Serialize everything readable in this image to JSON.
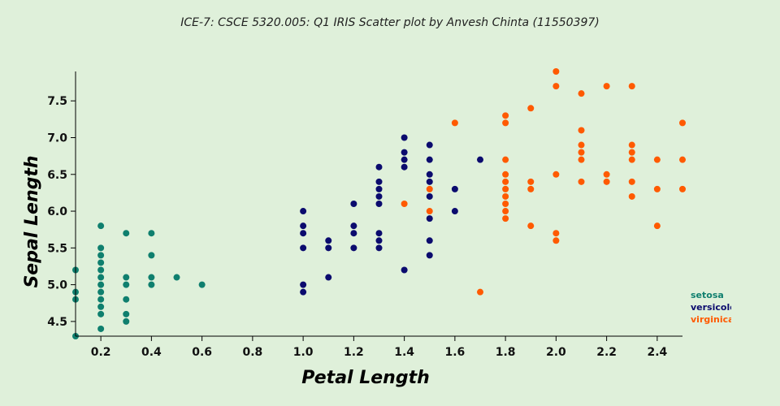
{
  "chart_data": {
    "type": "scatter",
    "title": "ICE-7: CSCE 5320.005: Q1 IRIS Scatter plot by Anvesh Chinta (11550397)",
    "xlabel": "Petal Length",
    "ylabel": "Sepal Length",
    "xlim": [
      0.1,
      2.5
    ],
    "ylim": [
      4.3,
      7.9
    ],
    "x_ticks": [
      "0.2",
      "0.4",
      "0.6",
      "0.8",
      "1.0",
      "1.2",
      "1.4",
      "1.6",
      "1.8",
      "2.0",
      "2.2",
      "2.4"
    ],
    "y_ticks": [
      "4.5",
      "5.0",
      "5.5",
      "6.0",
      "6.5",
      "7.0",
      "7.5"
    ],
    "grid": false,
    "legend_position": "right",
    "series": [
      {
        "name": "setosa",
        "color": "#0f7f6e",
        "points": [
          [
            0.1,
            5.2
          ],
          [
            0.1,
            4.9
          ],
          [
            0.1,
            4.8
          ],
          [
            0.1,
            4.3
          ],
          [
            0.2,
            5.8
          ],
          [
            0.2,
            5.5
          ],
          [
            0.2,
            5.4
          ],
          [
            0.2,
            5.3
          ],
          [
            0.2,
            5.2
          ],
          [
            0.2,
            5.1
          ],
          [
            0.2,
            5.0
          ],
          [
            0.2,
            4.9
          ],
          [
            0.2,
            4.8
          ],
          [
            0.2,
            4.7
          ],
          [
            0.2,
            4.6
          ],
          [
            0.2,
            4.4
          ],
          [
            0.3,
            5.7
          ],
          [
            0.3,
            5.1
          ],
          [
            0.3,
            5.0
          ],
          [
            0.3,
            4.8
          ],
          [
            0.3,
            4.6
          ],
          [
            0.3,
            4.5
          ],
          [
            0.4,
            5.7
          ],
          [
            0.4,
            5.4
          ],
          [
            0.4,
            5.1
          ],
          [
            0.4,
            5.0
          ],
          [
            0.5,
            5.1
          ],
          [
            0.6,
            5.0
          ]
        ]
      },
      {
        "name": "versicolor",
        "color": "#0b0b6e",
        "points": [
          [
            1.0,
            6.0
          ],
          [
            1.0,
            5.8
          ],
          [
            1.0,
            5.7
          ],
          [
            1.0,
            5.5
          ],
          [
            1.0,
            5.0
          ],
          [
            1.0,
            4.9
          ],
          [
            1.1,
            5.6
          ],
          [
            1.1,
            5.5
          ],
          [
            1.1,
            5.1
          ],
          [
            1.2,
            6.1
          ],
          [
            1.2,
            5.8
          ],
          [
            1.2,
            5.7
          ],
          [
            1.2,
            5.5
          ],
          [
            1.3,
            6.6
          ],
          [
            1.3,
            6.4
          ],
          [
            1.3,
            6.3
          ],
          [
            1.3,
            6.2
          ],
          [
            1.3,
            6.1
          ],
          [
            1.3,
            5.7
          ],
          [
            1.3,
            5.6
          ],
          [
            1.3,
            5.5
          ],
          [
            1.4,
            7.0
          ],
          [
            1.4,
            6.8
          ],
          [
            1.4,
            6.7
          ],
          [
            1.4,
            6.6
          ],
          [
            1.4,
            5.2
          ],
          [
            1.5,
            6.9
          ],
          [
            1.5,
            6.7
          ],
          [
            1.5,
            6.5
          ],
          [
            1.5,
            6.4
          ],
          [
            1.5,
            6.2
          ],
          [
            1.5,
            5.9
          ],
          [
            1.5,
            5.6
          ],
          [
            1.5,
            5.4
          ],
          [
            1.6,
            6.3
          ],
          [
            1.6,
            6.0
          ],
          [
            1.7,
            6.7
          ]
        ]
      },
      {
        "name": "virginica",
        "color": "#ff5a00",
        "points": [
          [
            1.4,
            6.1
          ],
          [
            1.5,
            6.3
          ],
          [
            1.5,
            6.0
          ],
          [
            1.6,
            7.2
          ],
          [
            1.7,
            4.9
          ],
          [
            1.8,
            7.3
          ],
          [
            1.8,
            7.2
          ],
          [
            1.8,
            6.7
          ],
          [
            1.8,
            6.5
          ],
          [
            1.8,
            6.4
          ],
          [
            1.8,
            6.3
          ],
          [
            1.8,
            6.2
          ],
          [
            1.8,
            6.1
          ],
          [
            1.8,
            6.0
          ],
          [
            1.8,
            5.9
          ],
          [
            1.9,
            7.4
          ],
          [
            1.9,
            6.4
          ],
          [
            1.9,
            6.3
          ],
          [
            1.9,
            5.8
          ],
          [
            2.0,
            7.9
          ],
          [
            2.0,
            7.7
          ],
          [
            2.0,
            6.5
          ],
          [
            2.0,
            5.7
          ],
          [
            2.0,
            5.6
          ],
          [
            2.1,
            7.6
          ],
          [
            2.1,
            7.1
          ],
          [
            2.1,
            6.9
          ],
          [
            2.1,
            6.8
          ],
          [
            2.1,
            6.7
          ],
          [
            2.1,
            6.4
          ],
          [
            2.2,
            7.7
          ],
          [
            2.2,
            6.5
          ],
          [
            2.2,
            6.4
          ],
          [
            2.3,
            7.7
          ],
          [
            2.3,
            6.9
          ],
          [
            2.3,
            6.8
          ],
          [
            2.3,
            6.7
          ],
          [
            2.3,
            6.4
          ],
          [
            2.3,
            6.2
          ],
          [
            2.4,
            6.7
          ],
          [
            2.4,
            6.3
          ],
          [
            2.4,
            5.8
          ],
          [
            2.5,
            7.2
          ],
          [
            2.5,
            6.7
          ],
          [
            2.5,
            6.3
          ]
        ]
      }
    ]
  }
}
